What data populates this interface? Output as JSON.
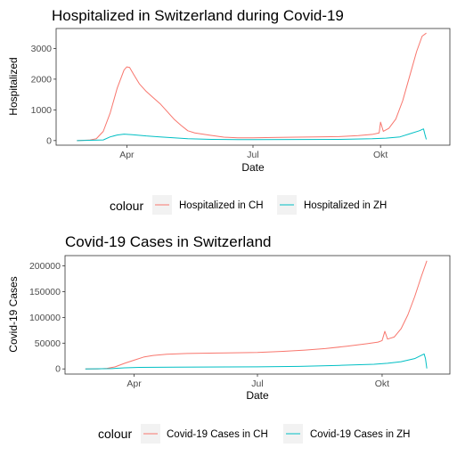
{
  "chart_data": [
    {
      "type": "line",
      "title": "Hospitalized in Switzerland during Covid-19",
      "xlabel": "Date",
      "ylabel": "Hospitalized",
      "x_tick_labels": [
        "Apr",
        "Jul",
        "Okt"
      ],
      "x_ticks": [
        "2020-04-01",
        "2020-07-01",
        "2020-10-01"
      ],
      "xlim": [
        "2020-02-10",
        "2020-11-20"
      ],
      "ylim": [
        -150,
        3650
      ],
      "y_ticks": [
        0,
        1000,
        2000,
        3000
      ],
      "grid": false,
      "legend_title": "colour",
      "legend_position": "bottom",
      "series": [
        {
          "name": "Hospitalized in CH",
          "color": "#F8766D",
          "points": [
            [
              "2020-02-25",
              0
            ],
            [
              "2020-03-05",
              15
            ],
            [
              "2020-03-10",
              60
            ],
            [
              "2020-03-15",
              300
            ],
            [
              "2020-03-20",
              900
            ],
            [
              "2020-03-25",
              1700
            ],
            [
              "2020-03-30",
              2300
            ],
            [
              "2020-04-01",
              2400
            ],
            [
              "2020-04-03",
              2380
            ],
            [
              "2020-04-06",
              2150
            ],
            [
              "2020-04-10",
              1850
            ],
            [
              "2020-04-15",
              1600
            ],
            [
              "2020-04-20",
              1400
            ],
            [
              "2020-04-25",
              1200
            ],
            [
              "2020-04-30",
              950
            ],
            [
              "2020-05-05",
              700
            ],
            [
              "2020-05-10",
              500
            ],
            [
              "2020-05-15",
              320
            ],
            [
              "2020-05-20",
              250
            ],
            [
              "2020-05-30",
              180
            ],
            [
              "2020-06-10",
              110
            ],
            [
              "2020-06-20",
              90
            ],
            [
              "2020-07-01",
              90
            ],
            [
              "2020-07-15",
              100
            ],
            [
              "2020-08-01",
              110
            ],
            [
              "2020-08-15",
              120
            ],
            [
              "2020-09-01",
              130
            ],
            [
              "2020-09-15",
              160
            ],
            [
              "2020-09-25",
              200
            ],
            [
              "2020-09-30",
              250
            ],
            [
              "2020-10-01",
              600
            ],
            [
              "2020-10-03",
              300
            ],
            [
              "2020-10-07",
              400
            ],
            [
              "2020-10-12",
              700
            ],
            [
              "2020-10-17",
              1300
            ],
            [
              "2020-10-22",
              2100
            ],
            [
              "2020-10-27",
              2900
            ],
            [
              "2020-10-31",
              3400
            ],
            [
              "2020-11-03",
              3500
            ]
          ]
        },
        {
          "name": "Hospitalized in ZH",
          "color": "#00BFC4",
          "points": [
            [
              "2020-02-25",
              0
            ],
            [
              "2020-03-15",
              20
            ],
            [
              "2020-03-20",
              120
            ],
            [
              "2020-03-25",
              180
            ],
            [
              "2020-03-30",
              210
            ],
            [
              "2020-04-05",
              190
            ],
            [
              "2020-04-15",
              150
            ],
            [
              "2020-04-25",
              120
            ],
            [
              "2020-05-05",
              90
            ],
            [
              "2020-05-15",
              60
            ],
            [
              "2020-06-01",
              40
            ],
            [
              "2020-06-20",
              30
            ],
            [
              "2020-07-01",
              30
            ],
            [
              "2020-08-01",
              35
            ],
            [
              "2020-09-01",
              40
            ],
            [
              "2020-09-25",
              60
            ],
            [
              "2020-10-05",
              80
            ],
            [
              "2020-10-15",
              120
            ],
            [
              "2020-10-22",
              220
            ],
            [
              "2020-10-29",
              320
            ],
            [
              "2020-11-01",
              380
            ],
            [
              "2020-11-02",
              200
            ],
            [
              "2020-11-03",
              40
            ]
          ]
        }
      ]
    },
    {
      "type": "line",
      "title": "Covid-19 Cases in Switzerland",
      "xlabel": "Date",
      "ylabel": "Covid-19 Cases",
      "x_tick_labels": [
        "Apr",
        "Jul",
        "Okt"
      ],
      "x_ticks": [
        "2020-04-01",
        "2020-07-01",
        "2020-10-01"
      ],
      "xlim": [
        "2020-02-10",
        "2020-11-20"
      ],
      "ylim": [
        -10000,
        220000
      ],
      "y_ticks": [
        0,
        50000,
        100000,
        150000,
        200000
      ],
      "grid": false,
      "legend_title": "colour",
      "legend_position": "bottom",
      "series": [
        {
          "name": "Covid-19 Cases in CH",
          "color": "#F8766D",
          "points": [
            [
              "2020-02-25",
              0
            ],
            [
              "2020-03-05",
              0
            ],
            [
              "2020-03-12",
              1000
            ],
            [
              "2020-03-18",
              4000
            ],
            [
              "2020-03-25",
              11000
            ],
            [
              "2020-04-01",
              17000
            ],
            [
              "2020-04-08",
              23000
            ],
            [
              "2020-04-15",
              26000
            ],
            [
              "2020-04-25",
              28500
            ],
            [
              "2020-05-10",
              30000
            ],
            [
              "2020-06-01",
              30800
            ],
            [
              "2020-07-01",
              32000
            ],
            [
              "2020-07-20",
              34000
            ],
            [
              "2020-08-05",
              36500
            ],
            [
              "2020-08-20",
              39500
            ],
            [
              "2020-09-05",
              44000
            ],
            [
              "2020-09-20",
              49000
            ],
            [
              "2020-09-28",
              52000
            ],
            [
              "2020-10-01",
              55000
            ],
            [
              "2020-10-03",
              73000
            ],
            [
              "2020-10-05",
              58000
            ],
            [
              "2020-10-10",
              62000
            ],
            [
              "2020-10-15",
              78000
            ],
            [
              "2020-10-20",
              105000
            ],
            [
              "2020-10-25",
              140000
            ],
            [
              "2020-10-30",
              180000
            ],
            [
              "2020-11-03",
              210000
            ]
          ]
        },
        {
          "name": "Covid-19 Cases in ZH",
          "color": "#00BFC4",
          "points": [
            [
              "2020-02-25",
              0
            ],
            [
              "2020-03-15",
              500
            ],
            [
              "2020-03-25",
              2000
            ],
            [
              "2020-04-05",
              3000
            ],
            [
              "2020-05-01",
              3500
            ],
            [
              "2020-07-01",
              4000
            ],
            [
              "2020-08-01",
              5000
            ],
            [
              "2020-09-01",
              7000
            ],
            [
              "2020-09-25",
              9000
            ],
            [
              "2020-10-05",
              11000
            ],
            [
              "2020-10-15",
              14000
            ],
            [
              "2020-10-25",
              20000
            ],
            [
              "2020-11-01",
              29000
            ],
            [
              "2020-11-02",
              20000
            ],
            [
              "2020-11-03",
              1000
            ]
          ]
        }
      ]
    }
  ]
}
